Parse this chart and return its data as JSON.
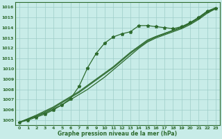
{
  "x": [
    0,
    1,
    2,
    3,
    4,
    5,
    6,
    7,
    8,
    9,
    10,
    11,
    12,
    13,
    14,
    15,
    16,
    17,
    18,
    19,
    20,
    21,
    22,
    23
  ],
  "line_straight1": [
    1004.8,
    1005.1,
    1005.4,
    1005.7,
    1006.1,
    1006.5,
    1007.0,
    1007.5,
    1008.0,
    1008.6,
    1009.2,
    1009.9,
    1010.6,
    1011.3,
    1012.0,
    1012.6,
    1013.0,
    1013.3,
    1013.6,
    1013.9,
    1014.3,
    1014.8,
    1015.4,
    1015.85
  ],
  "line_straight2": [
    1004.8,
    1005.1,
    1005.4,
    1005.8,
    1006.2,
    1006.7,
    1007.2,
    1007.7,
    1008.3,
    1008.9,
    1009.5,
    1010.1,
    1010.8,
    1011.5,
    1012.1,
    1012.7,
    1013.1,
    1013.4,
    1013.7,
    1014.0,
    1014.4,
    1014.9,
    1015.5,
    1015.9
  ],
  "line_straight3": [
    1004.8,
    1005.15,
    1005.5,
    1005.9,
    1006.3,
    1006.8,
    1007.3,
    1007.8,
    1008.4,
    1009.0,
    1009.6,
    1010.2,
    1010.9,
    1011.6,
    1012.2,
    1012.8,
    1013.15,
    1013.45,
    1013.75,
    1014.05,
    1014.45,
    1015.0,
    1015.6,
    1015.95
  ],
  "line_marked": [
    1004.8,
    1005.0,
    1005.3,
    1005.6,
    1006.0,
    1006.5,
    1007.1,
    1008.3,
    1010.1,
    1011.5,
    1012.5,
    1013.1,
    1013.4,
    1013.6,
    1014.2,
    1014.2,
    1014.1,
    1014.0,
    1013.9,
    1014.1,
    1014.5,
    1015.0,
    1015.6,
    1015.85
  ],
  "ylim": [
    1004.5,
    1016.5
  ],
  "yticks": [
    1005,
    1006,
    1007,
    1008,
    1009,
    1010,
    1011,
    1012,
    1013,
    1014,
    1015,
    1016
  ],
  "xticks": [
    0,
    1,
    2,
    3,
    4,
    5,
    6,
    7,
    8,
    9,
    10,
    11,
    12,
    13,
    14,
    15,
    16,
    17,
    18,
    19,
    20,
    21,
    22,
    23
  ],
  "xlabel": "Graphe pression niveau de la mer (hPa)",
  "line_color": "#2d6a2d",
  "bg_color": "#c8ece8",
  "grid_color": "#9ecdc8",
  "marker": "*",
  "marker_size": 3.5,
  "line_width": 0.9
}
